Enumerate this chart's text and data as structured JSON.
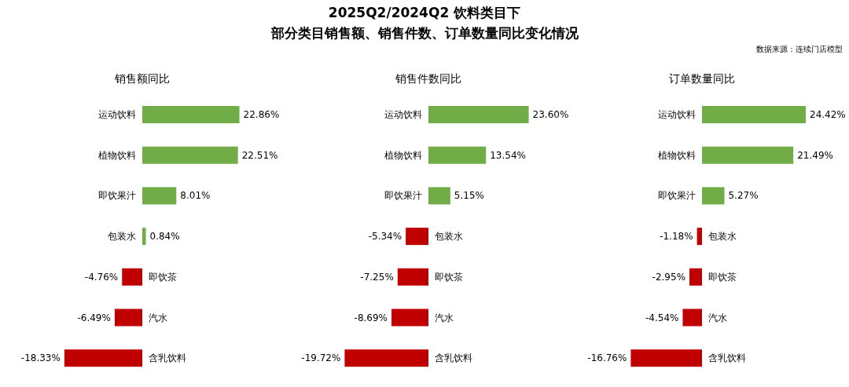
{
  "chart_data": [
    {
      "type": "bar",
      "orientation": "horizontal",
      "title": "销售额同比",
      "annotations": [
        "2025Q2/2024Q2 饮料类目下",
        "部分类目销售额、销售件数、订单数量同比变化情况",
        "数据来源：连续门店模型"
      ],
      "categories": [
        "运动饮料",
        "植物饮料",
        "即饮果汁",
        "包装水",
        "即饮茶",
        "汽水",
        "含乳饮料"
      ],
      "values": [
        22.86,
        22.51,
        8.01,
        0.84,
        -4.76,
        -6.49,
        -18.33
      ],
      "value_labels": [
        "22.86%",
        "22.51%",
        "8.01%",
        "0.84%",
        "-4.76%",
        "-6.49%",
        "-18.33%"
      ],
      "colors": [
        "#70ad47",
        "#70ad47",
        "#70ad47",
        "#70ad47",
        "#c00000",
        "#c00000",
        "#c00000"
      ]
    },
    {
      "type": "bar",
      "orientation": "horizontal",
      "title": "销售件数同比",
      "categories": [
        "运动饮料",
        "植物饮料",
        "即饮果汁",
        "包装水",
        "即饮茶",
        "汽水",
        "含乳饮料"
      ],
      "values": [
        23.6,
        13.54,
        5.15,
        -5.34,
        -7.25,
        -8.69,
        -19.72
      ],
      "value_labels": [
        "23.60%",
        "13.54%",
        "5.15%",
        "-5.34%",
        "-7.25%",
        "-8.69%",
        "-19.72%"
      ],
      "colors": [
        "#70ad47",
        "#70ad47",
        "#70ad47",
        "#c00000",
        "#c00000",
        "#c00000",
        "#c00000"
      ]
    },
    {
      "type": "bar",
      "orientation": "horizontal",
      "title": "订单数量同比",
      "categories": [
        "运动饮料",
        "植物饮料",
        "即饮果汁",
        "包装水",
        "即饮茶",
        "汽水",
        "含乳饮料"
      ],
      "values": [
        24.42,
        21.49,
        5.27,
        -1.18,
        -2.95,
        -4.54,
        -16.76
      ],
      "value_labels": [
        "24.42%",
        "21.49%",
        "5.27%",
        "-1.18%",
        "-2.95%",
        "-4.54%",
        "-16.76%"
      ],
      "colors": [
        "#70ad47",
        "#70ad47",
        "#70ad47",
        "#c00000",
        "#c00000",
        "#c00000",
        "#c00000"
      ]
    }
  ]
}
